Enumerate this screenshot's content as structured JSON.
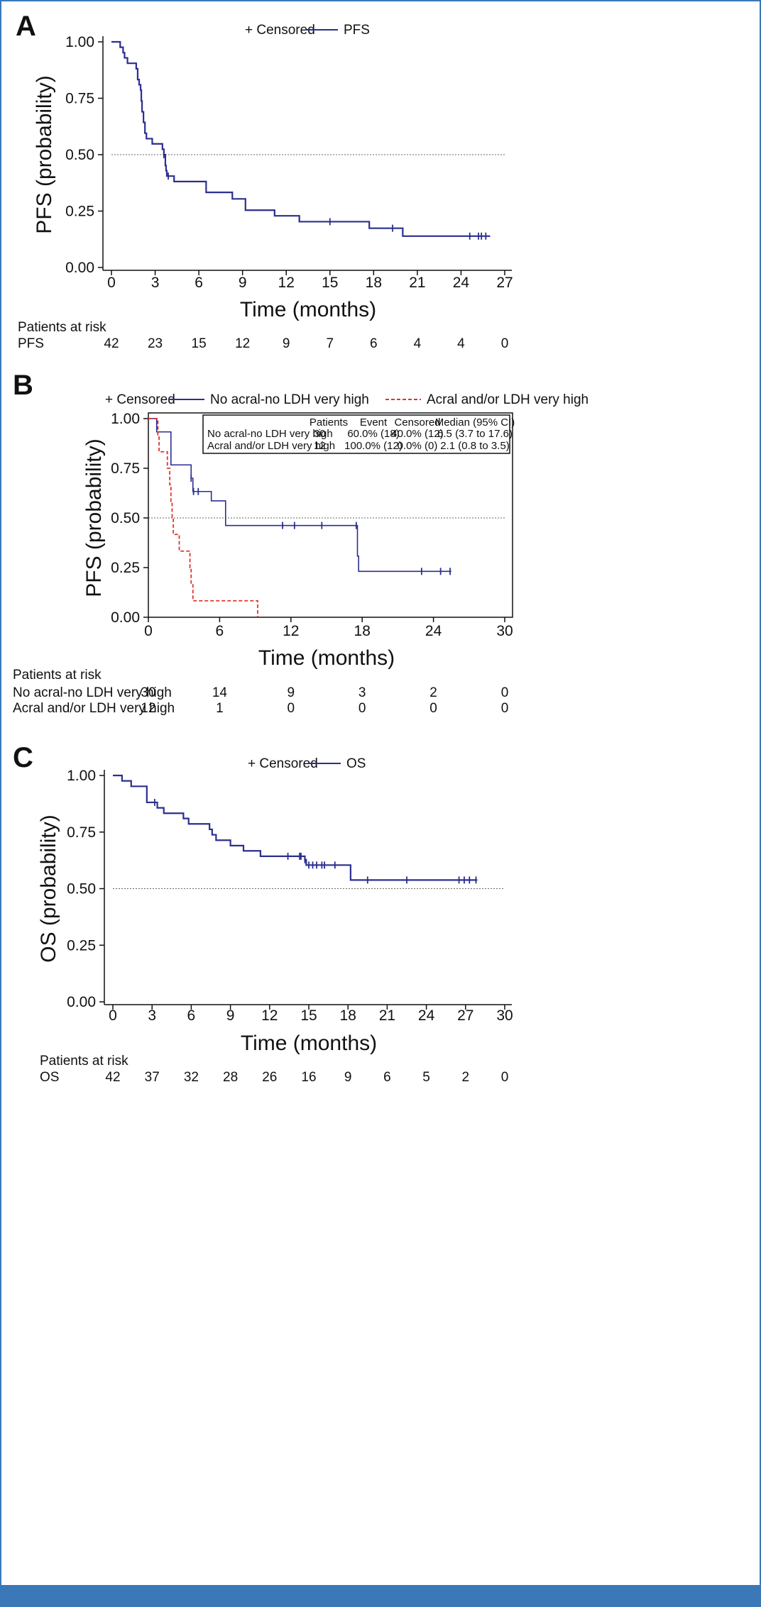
{
  "colors": {
    "navy": "#2b2f8f",
    "red": "#e0342a",
    "accent": "#3a78b8"
  },
  "chart_data": [
    {
      "type": "line",
      "panel": "A",
      "ylabel": "PFS (probability)",
      "xlabel": "Time (months)",
      "xlim": [
        0,
        27
      ],
      "ylim": [
        0,
        1
      ],
      "xticks": [
        "0",
        "3",
        "6",
        "9",
        "12",
        "15",
        "18",
        "21",
        "24",
        "27"
      ],
      "yticks": [
        "0.00",
        "0.25",
        "0.50",
        "0.75",
        "1.00"
      ],
      "reference_y": 0.5,
      "legend": {
        "censored_label": "+ Censored",
        "items": [
          "PFS"
        ]
      },
      "series": [
        {
          "name": "PFS",
          "color": "#2b2f8f",
          "dash": false,
          "steps": [
            [
              0,
              1.0
            ],
            [
              0.6,
              0.976
            ],
            [
              0.8,
              0.952
            ],
            [
              0.9,
              0.929
            ],
            [
              1.1,
              0.905
            ],
            [
              1.7,
              0.881
            ],
            [
              1.8,
              0.833
            ],
            [
              1.9,
              0.81
            ],
            [
              2.0,
              0.786
            ],
            [
              2.05,
              0.738
            ],
            [
              2.1,
              0.69
            ],
            [
              2.2,
              0.643
            ],
            [
              2.3,
              0.595
            ],
            [
              2.4,
              0.571
            ],
            [
              2.8,
              0.548
            ],
            [
              3.5,
              0.524
            ],
            [
              3.6,
              0.5
            ],
            [
              3.7,
              0.452
            ],
            [
              3.75,
              0.429
            ],
            [
              3.8,
              0.405
            ],
            [
              4.3,
              0.381
            ],
            [
              6.5,
              0.333
            ],
            [
              8.3,
              0.304
            ],
            [
              9.2,
              0.254
            ],
            [
              11.2,
              0.229
            ],
            [
              12.9,
              0.203
            ],
            [
              17.7,
              0.174
            ],
            [
              20.0,
              0.139
            ],
            [
              26.0,
              0.139
            ]
          ],
          "censored_x": [
            3.6,
            3.9,
            15.0,
            19.3,
            24.6,
            25.2,
            25.4,
            25.7
          ]
        }
      ],
      "risk_table": {
        "header": "Patients at risk",
        "rows": [
          {
            "label": "PFS",
            "values": [
              "42",
              "23",
              "15",
              "12",
              "9",
              "7",
              "6",
              "4",
              "4",
              "0"
            ]
          }
        ]
      }
    },
    {
      "type": "line",
      "panel": "B",
      "ylabel": "PFS (probability)",
      "xlabel": "Time (months)",
      "xlim": [
        0,
        30
      ],
      "ylim": [
        0,
        1
      ],
      "xticks": [
        "0",
        "6",
        "12",
        "18",
        "24",
        "30"
      ],
      "yticks": [
        "0.00",
        "0.25",
        "0.50",
        "0.75",
        "1.00"
      ],
      "reference_y": 0.5,
      "legend": {
        "censored_label": "+ Censored",
        "items": [
          "No acral-no LDH very high",
          "Acral and/or LDH very high"
        ]
      },
      "series": [
        {
          "name": "No acral-no LDH very high",
          "color": "#2b2f8f",
          "dash": false,
          "steps": [
            [
              0,
              1.0
            ],
            [
              0.7,
              0.933
            ],
            [
              1.9,
              0.767
            ],
            [
              3.6,
              0.7
            ],
            [
              3.75,
              0.633
            ],
            [
              5.3,
              0.586
            ],
            [
              6.5,
              0.462
            ],
            [
              17.6,
              0.308
            ],
            [
              17.7,
              0.231
            ],
            [
              25.5,
              0.231
            ]
          ],
          "censored_x": [
            3.6,
            3.8,
            4.2,
            11.3,
            12.3,
            14.6,
            17.5,
            23.0,
            24.6,
            25.4
          ]
        },
        {
          "name": "Acral and/or LDH very high",
          "color": "#e0342a",
          "dash": true,
          "steps": [
            [
              0,
              1.0
            ],
            [
              0.8,
              0.917
            ],
            [
              0.9,
              0.833
            ],
            [
              1.6,
              0.75
            ],
            [
              1.8,
              0.667
            ],
            [
              1.9,
              0.583
            ],
            [
              2.0,
              0.5
            ],
            [
              2.1,
              0.417
            ],
            [
              2.6,
              0.333
            ],
            [
              3.5,
              0.25
            ],
            [
              3.6,
              0.167
            ],
            [
              3.75,
              0.083
            ],
            [
              9.2,
              0.0
            ]
          ],
          "censored_x": []
        }
      ],
      "stats_table": {
        "headers": [
          "",
          "Patients",
          "Event",
          "Censored",
          "Median (95% CI)"
        ],
        "rows": [
          [
            "No acral-no LDH very high",
            "30",
            "60.0% (18)",
            "40.0% (12)",
            "6.5 (3.7 to 17.6)"
          ],
          [
            "Acral and/or LDH very high",
            "12",
            "100.0% (12)",
            "0.0% (0)",
            "2.1 (0.8 to 3.5)"
          ]
        ]
      },
      "risk_table": {
        "header": "Patients at risk",
        "rows": [
          {
            "label": "No acral-no LDH very high",
            "values": [
              "30",
              "14",
              "9",
              "3",
              "2",
              "0"
            ]
          },
          {
            "label": "Acral and/or LDH very high",
            "values": [
              "12",
              "1",
              "0",
              "0",
              "0",
              "0"
            ]
          }
        ]
      }
    },
    {
      "type": "line",
      "panel": "C",
      "ylabel": "OS (probability)",
      "xlabel": "Time (months)",
      "xlim": [
        0,
        30
      ],
      "ylim": [
        0,
        1
      ],
      "xticks": [
        "0",
        "3",
        "6",
        "9",
        "12",
        "15",
        "18",
        "21",
        "24",
        "27",
        "30"
      ],
      "yticks": [
        "0.00",
        "0.25",
        "0.50",
        "0.75",
        "1.00"
      ],
      "reference_y": 0.5,
      "legend": {
        "censored_label": "+ Censored",
        "items": [
          "OS"
        ]
      },
      "series": [
        {
          "name": "OS",
          "color": "#2b2f8f",
          "dash": false,
          "steps": [
            [
              0,
              1.0
            ],
            [
              0.7,
              0.976
            ],
            [
              1.4,
              0.952
            ],
            [
              2.6,
              0.881
            ],
            [
              3.4,
              0.857
            ],
            [
              3.9,
              0.833
            ],
            [
              5.4,
              0.81
            ],
            [
              5.8,
              0.786
            ],
            [
              7.4,
              0.762
            ],
            [
              7.6,
              0.738
            ],
            [
              7.9,
              0.714
            ],
            [
              9.0,
              0.69
            ],
            [
              10.0,
              0.667
            ],
            [
              11.3,
              0.643
            ],
            [
              14.7,
              0.628
            ],
            [
              14.8,
              0.604
            ],
            [
              18.2,
              0.538
            ],
            [
              27.9,
              0.538
            ]
          ],
          "censored_x": [
            3.2,
            13.4,
            14.3,
            14.4,
            14.7,
            15.0,
            15.3,
            15.6,
            16.0,
            16.2,
            17.0,
            19.5,
            22.5,
            26.5,
            26.9,
            27.3,
            27.8
          ]
        }
      ],
      "risk_table": {
        "header": "Patients at risk",
        "rows": [
          {
            "label": "OS",
            "values": [
              "42",
              "37",
              "32",
              "28",
              "26",
              "16",
              "9",
              "6",
              "5",
              "2",
              "0"
            ]
          }
        ]
      }
    }
  ]
}
